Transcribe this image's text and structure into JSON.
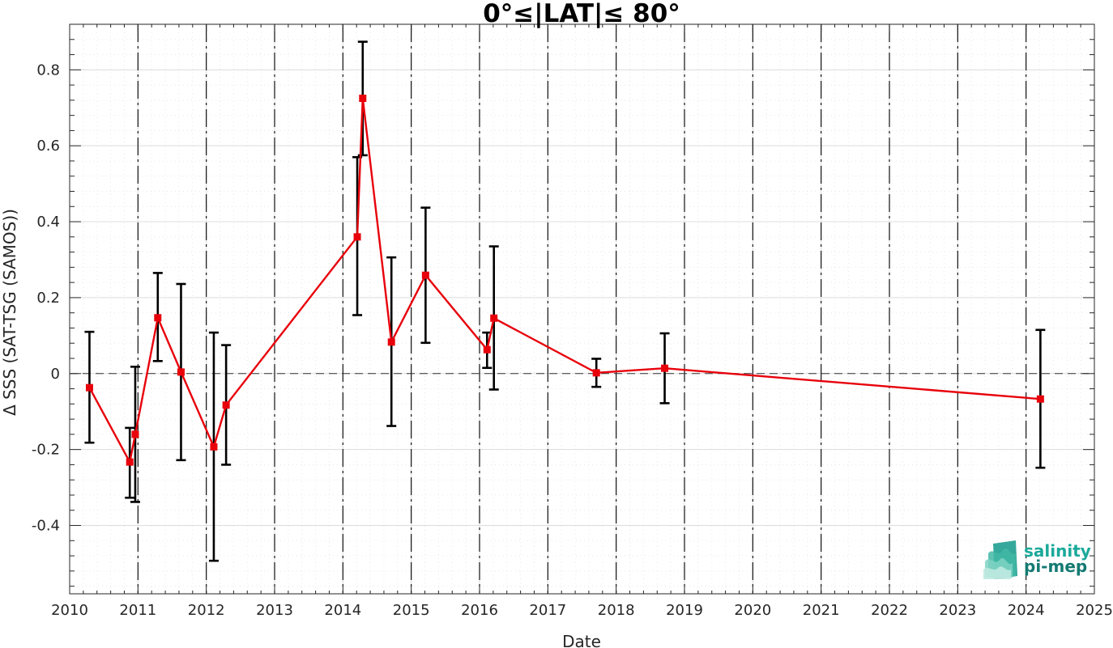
{
  "chart_data": {
    "type": "line",
    "title": "0°≤|LAT|≤ 80°",
    "xlabel": "Date",
    "ylabel": "Δ SSS (SAT-TSG (SAMOS))",
    "xlim": [
      2010,
      2025
    ],
    "ylim": [
      -0.58,
      0.92
    ],
    "x_ticks": [
      "2010",
      "2011",
      "2012",
      "2013",
      "2014",
      "2015",
      "2016",
      "2017",
      "2018",
      "2019",
      "2020",
      "2021",
      "2022",
      "2023",
      "2024",
      "2025"
    ],
    "y_ticks": [
      "-0.4",
      "-0.2",
      "0",
      "0.2",
      "0.4",
      "0.6",
      "0.8"
    ],
    "grid": true,
    "year_separators": true,
    "zero_line": true,
    "series": [
      {
        "color": "#e8000b",
        "marker": "square",
        "errorbar_color": "#000000",
        "points": [
          {
            "x": 2010.29,
            "y": -0.037,
            "lo": -0.182,
            "hi": 0.11
          },
          {
            "x": 2010.88,
            "y": -0.233,
            "lo": -0.327,
            "hi": -0.143
          },
          {
            "x": 2010.96,
            "y": -0.16,
            "lo": -0.338,
            "hi": 0.018
          },
          {
            "x": 2011.29,
            "y": 0.147,
            "lo": 0.033,
            "hi": 0.265
          },
          {
            "x": 2011.63,
            "y": 0.004,
            "lo": -0.228,
            "hi": 0.236
          },
          {
            "x": 2012.11,
            "y": -0.193,
            "lo": -0.493,
            "hi": 0.108
          },
          {
            "x": 2012.29,
            "y": -0.083,
            "lo": -0.24,
            "hi": 0.075
          },
          {
            "x": 2014.21,
            "y": 0.36,
            "lo": 0.154,
            "hi": 0.57
          },
          {
            "x": 2014.29,
            "y": 0.725,
            "lo": 0.575,
            "hi": 0.874
          },
          {
            "x": 2014.71,
            "y": 0.083,
            "lo": -0.138,
            "hi": 0.306
          },
          {
            "x": 2015.21,
            "y": 0.259,
            "lo": 0.081,
            "hi": 0.437
          },
          {
            "x": 2016.11,
            "y": 0.063,
            "lo": 0.015,
            "hi": 0.108
          },
          {
            "x": 2016.21,
            "y": 0.146,
            "lo": -0.042,
            "hi": 0.335
          },
          {
            "x": 2017.71,
            "y": 0.002,
            "lo": -0.035,
            "hi": 0.039
          },
          {
            "x": 2018.71,
            "y": 0.014,
            "lo": -0.078,
            "hi": 0.106
          },
          {
            "x": 2024.21,
            "y": -0.067,
            "lo": -0.248,
            "hi": 0.115
          }
        ]
      }
    ]
  },
  "logo": {
    "line1": "salinity",
    "line2": "pi-mep",
    "color1": "#1aa99a",
    "color2": "#147a72"
  }
}
